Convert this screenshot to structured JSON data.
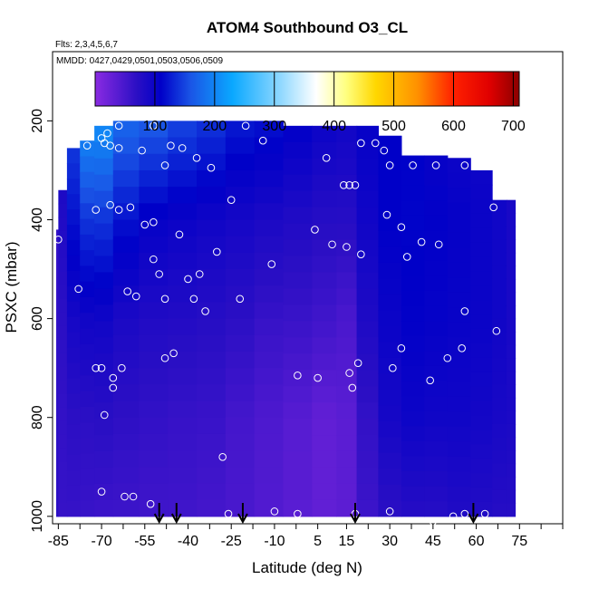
{
  "chart_data": {
    "type": "heatmap",
    "title": "ATOM4 Southbound O3_CL",
    "subtitle_flights": "Flts: 2,3,4,5,6,7",
    "subtitle_dates": "MMDD: 0427,0429,0501,0503,0506,0509",
    "xlabel": "Latitude (deg N)",
    "ylabel": "PSXC (mbar)",
    "xlim": [
      -87,
      90
    ],
    "ylim": [
      1015,
      60
    ],
    "y_reversed": true,
    "x_ticks": [
      -85,
      -70,
      -55,
      -40,
      -25,
      -10,
      5,
      15,
      30,
      45,
      60,
      75
    ],
    "x_minor_ticks": [
      -85,
      -77.5,
      -70,
      -62.5,
      -55,
      -47.5,
      -40,
      -32.5,
      -25,
      -17.5,
      -10,
      -2.5,
      5,
      15,
      22.5,
      30,
      37.5,
      45,
      52.5,
      60,
      67.5,
      75,
      82.5,
      90
    ],
    "y_ticks": [
      200,
      400,
      600,
      800,
      1000
    ],
    "colorbar": {
      "ticks": [
        100,
        200,
        300,
        400,
        500,
        600,
        700
      ],
      "range": [
        0,
        710
      ],
      "stops": [
        {
          "v": 0,
          "c": "#8a2be2"
        },
        {
          "v": 70,
          "c": "#2b0fc4"
        },
        {
          "v": 110,
          "c": "#0000c8"
        },
        {
          "v": 160,
          "c": "#1a55e6"
        },
        {
          "v": 230,
          "c": "#0aa8ff"
        },
        {
          "v": 310,
          "c": "#8fd8ff"
        },
        {
          "v": 370,
          "c": "#ffffff"
        },
        {
          "v": 420,
          "c": "#ffff80"
        },
        {
          "v": 470,
          "c": "#ffd700"
        },
        {
          "v": 540,
          "c": "#ff9000"
        },
        {
          "v": 600,
          "c": "#ff2000"
        },
        {
          "v": 660,
          "c": "#e00000"
        },
        {
          "v": 710,
          "c": "#8b0000"
        }
      ]
    },
    "field": {
      "columns": [
        {
          "lat": -86,
          "top": 420,
          "vals": [
            60,
            62,
            65,
            68,
            70
          ]
        },
        {
          "lat": -84,
          "top": 340,
          "vals": [
            95,
            80,
            70,
            65,
            62
          ]
        },
        {
          "lat": -80,
          "top": 255,
          "vals": [
            150,
            120,
            90,
            70,
            62
          ]
        },
        {
          "lat": -75,
          "top": 240,
          "vals": [
            210,
            140,
            95,
            70,
            60
          ]
        },
        {
          "lat": -70,
          "top": 210,
          "vals": [
            210,
            140,
            95,
            72,
            58
          ]
        },
        {
          "lat": -62,
          "top": 200,
          "vals": [
            175,
            120,
            85,
            68,
            57
          ]
        },
        {
          "lat": -52,
          "top": 200,
          "vals": [
            165,
            105,
            80,
            65,
            55
          ]
        },
        {
          "lat": -42,
          "top": 200,
          "vals": [
            150,
            100,
            78,
            62,
            55
          ]
        },
        {
          "lat": -32,
          "top": 200,
          "vals": [
            140,
            95,
            75,
            60,
            52
          ]
        },
        {
          "lat": -22,
          "top": 200,
          "vals": [
            125,
            90,
            70,
            52,
            48
          ]
        },
        {
          "lat": -12,
          "top": 200,
          "vals": [
            120,
            85,
            62,
            45,
            42
          ]
        },
        {
          "lat": -2,
          "top": 210,
          "vals": [
            110,
            80,
            60,
            38,
            36
          ]
        },
        {
          "lat": 8,
          "top": 210,
          "vals": [
            100,
            75,
            55,
            30,
            30
          ]
        },
        {
          "lat": 15,
          "top": 210,
          "vals": [
            95,
            75,
            48,
            35,
            34
          ]
        },
        {
          "lat": 22,
          "top": 210,
          "vals": [
            105,
            95,
            82,
            65,
            58
          ]
        },
        {
          "lat": 30,
          "top": 230,
          "vals": [
            110,
            110,
            100,
            90,
            70
          ]
        },
        {
          "lat": 38,
          "top": 270,
          "vals": [
            110,
            112,
            108,
            98,
            75
          ]
        },
        {
          "lat": 46,
          "top": 270,
          "vals": [
            100,
            108,
            105,
            95,
            75
          ]
        },
        {
          "lat": 54,
          "top": 275,
          "vals": [
            95,
            105,
            102,
            95,
            80
          ]
        },
        {
          "lat": 62,
          "top": 300,
          "vals": [
            95,
            100,
            100,
            92,
            78
          ]
        },
        {
          "lat": 69,
          "top": 360,
          "vals": [
            95,
            95,
            95,
            88,
            75
          ]
        },
        {
          "lat": 72,
          "top": 360,
          "vals": [
            85,
            88,
            88,
            85,
            75
          ]
        }
      ],
      "pressure_levels": [
        200,
        400,
        600,
        800,
        1000
      ],
      "bottom": 1000
    },
    "points": [
      [
        -85,
        440
      ],
      [
        -78,
        540
      ],
      [
        -75,
        250
      ],
      [
        -72,
        380
      ],
      [
        -72,
        700
      ],
      [
        -70,
        235
      ],
      [
        -70,
        700
      ],
      [
        -70,
        950
      ],
      [
        -69,
        245
      ],
      [
        -69,
        795
      ],
      [
        -68,
        225
      ],
      [
        -67,
        250
      ],
      [
        -67,
        370
      ],
      [
        -66,
        720
      ],
      [
        -66,
        740
      ],
      [
        -64,
        210
      ],
      [
        -64,
        255
      ],
      [
        -64,
        380
      ],
      [
        -63,
        700
      ],
      [
        -62,
        960
      ],
      [
        -61,
        545
      ],
      [
        -60,
        375
      ],
      [
        -59,
        960
      ],
      [
        -58,
        555
      ],
      [
        -56,
        260
      ],
      [
        -55,
        410
      ],
      [
        -53,
        975
      ],
      [
        -52,
        210
      ],
      [
        -52,
        405
      ],
      [
        -52,
        480
      ],
      [
        -50,
        510
      ],
      [
        -48,
        290
      ],
      [
        -48,
        560
      ],
      [
        -48,
        680
      ],
      [
        -46,
        250
      ],
      [
        -45,
        670
      ],
      [
        -43,
        430
      ],
      [
        -42,
        255
      ],
      [
        -40,
        520
      ],
      [
        -38,
        560
      ],
      [
        -37,
        275
      ],
      [
        -36,
        510
      ],
      [
        -34,
        585
      ],
      [
        -32,
        295
      ],
      [
        -30,
        465
      ],
      [
        -28,
        880
      ],
      [
        -26,
        995
      ],
      [
        -25,
        360
      ],
      [
        -22,
        560
      ],
      [
        -20,
        210
      ],
      [
        -14,
        240
      ],
      [
        -11,
        490
      ],
      [
        -10,
        990
      ],
      [
        -2,
        715
      ],
      [
        -2,
        995
      ],
      [
        4,
        420
      ],
      [
        5,
        720
      ],
      [
        8,
        275
      ],
      [
        10,
        450
      ],
      [
        14,
        330
      ],
      [
        15,
        455
      ],
      [
        16,
        330
      ],
      [
        16,
        710
      ],
      [
        17,
        740
      ],
      [
        18,
        330
      ],
      [
        18,
        995
      ],
      [
        19,
        690
      ],
      [
        20,
        245
      ],
      [
        20,
        470
      ],
      [
        25,
        245
      ],
      [
        28,
        260
      ],
      [
        29,
        390
      ],
      [
        30,
        290
      ],
      [
        30,
        990
      ],
      [
        31,
        700
      ],
      [
        34,
        415
      ],
      [
        34,
        660
      ],
      [
        36,
        475
      ],
      [
        38,
        290
      ],
      [
        41,
        445
      ],
      [
        44,
        725
      ],
      [
        45,
        1010
      ],
      [
        46,
        290
      ],
      [
        47,
        450
      ],
      [
        50,
        680
      ],
      [
        52,
        1000
      ],
      [
        55,
        660
      ],
      [
        56,
        585
      ],
      [
        56,
        995
      ],
      [
        56,
        290
      ],
      [
        63,
        995
      ],
      [
        66,
        375
      ],
      [
        67,
        625
      ]
    ],
    "markers_lat": [
      -50,
      -44,
      -21,
      18,
      59
    ]
  }
}
